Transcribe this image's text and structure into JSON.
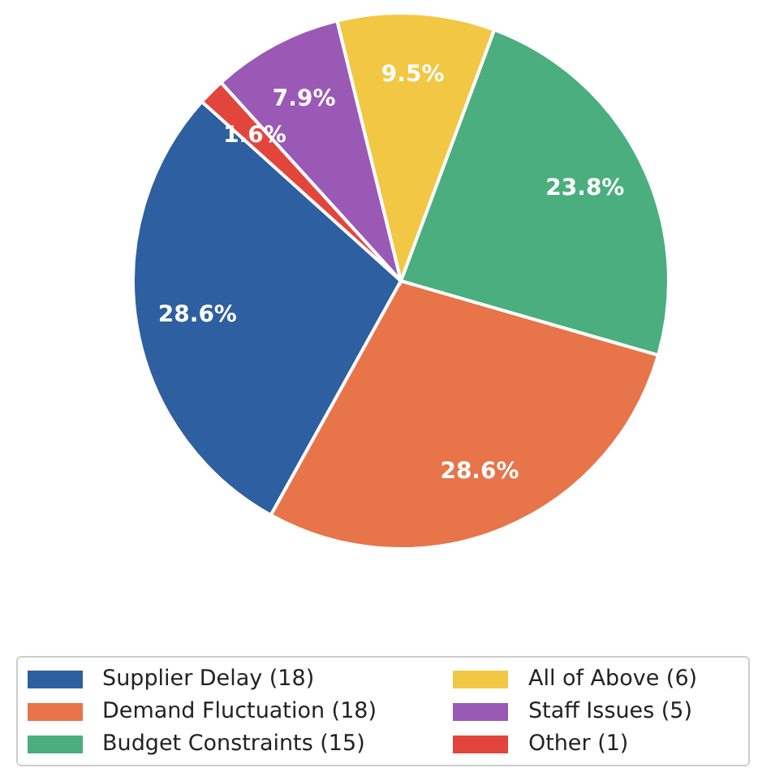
{
  "chart_data": {
    "type": "pie",
    "categories": [
      "Supplier Delay (18)",
      "Demand Fluctuation (18)",
      "Budget Constraints (15)",
      "All of Above (6)",
      "Staff Issues (5)",
      "Other (1)"
    ],
    "values": [
      28.6,
      28.6,
      23.8,
      9.5,
      7.9,
      1.6
    ],
    "colors": [
      "#2e5fa1",
      "#e8744a",
      "#4aae7e",
      "#f2c744",
      "#9b59b6",
      "#e2453c"
    ],
    "value_labels": [
      "28.6%",
      "28.6%",
      "23.8%",
      "9.5%",
      "7.9%",
      "1.6%"
    ],
    "legend": "bottom"
  }
}
